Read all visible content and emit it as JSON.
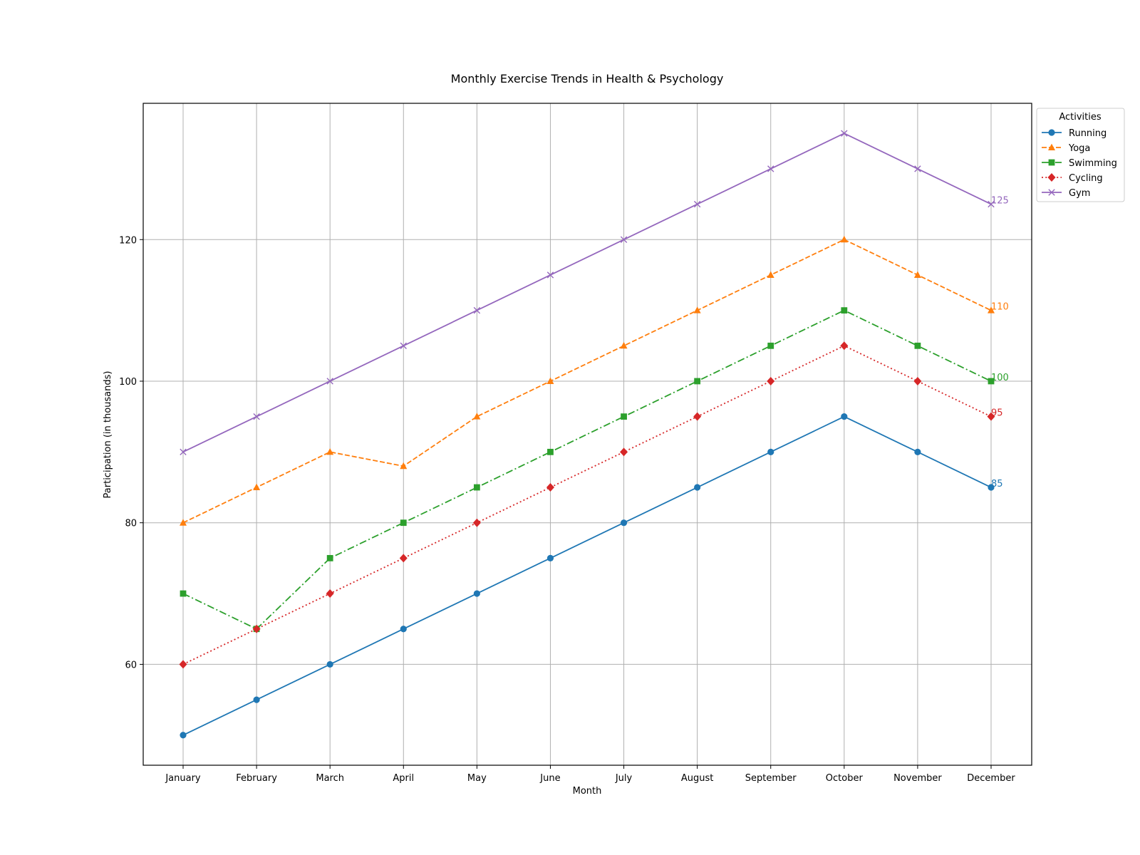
{
  "chart_data": {
    "type": "line",
    "title": "Monthly Exercise Trends in Health & Psychology",
    "xlabel": "Month",
    "ylabel": "Participation (in thousands)",
    "categories": [
      "January",
      "February",
      "March",
      "April",
      "May",
      "June",
      "July",
      "August",
      "September",
      "October",
      "November",
      "December"
    ],
    "ylim": [
      45.75,
      139.25
    ],
    "yticks": [
      60,
      80,
      100,
      120
    ],
    "grid": true,
    "legend": {
      "title": "Activities",
      "placement": "upper-right-outside"
    },
    "series": [
      {
        "name": "Running",
        "color": "#1f77b4",
        "line_style": "solid",
        "marker": "circle",
        "end_label": "85",
        "values": [
          50,
          55,
          60,
          65,
          70,
          75,
          80,
          85,
          90,
          95,
          90,
          85
        ]
      },
      {
        "name": "Yoga",
        "color": "#ff7f0e",
        "line_style": "dashed",
        "marker": "triangle",
        "end_label": "110",
        "values": [
          80,
          85,
          90,
          88,
          95,
          100,
          105,
          110,
          115,
          120,
          115,
          110
        ]
      },
      {
        "name": "Swimming",
        "color": "#2ca02c",
        "line_style": "dashdot",
        "marker": "square",
        "end_label": "100",
        "values": [
          70,
          65,
          75,
          80,
          85,
          90,
          95,
          100,
          105,
          110,
          105,
          100
        ]
      },
      {
        "name": "Cycling",
        "color": "#d62728",
        "line_style": "dotted",
        "marker": "diamond",
        "end_label": "95",
        "values": [
          60,
          65,
          70,
          75,
          80,
          85,
          90,
          95,
          100,
          105,
          100,
          95
        ]
      },
      {
        "name": "Gym",
        "color": "#9467bd",
        "line_style": "solid",
        "marker": "x",
        "end_label": "125",
        "values": [
          90,
          95,
          100,
          105,
          110,
          115,
          120,
          125,
          130,
          135,
          130,
          125
        ]
      }
    ]
  }
}
